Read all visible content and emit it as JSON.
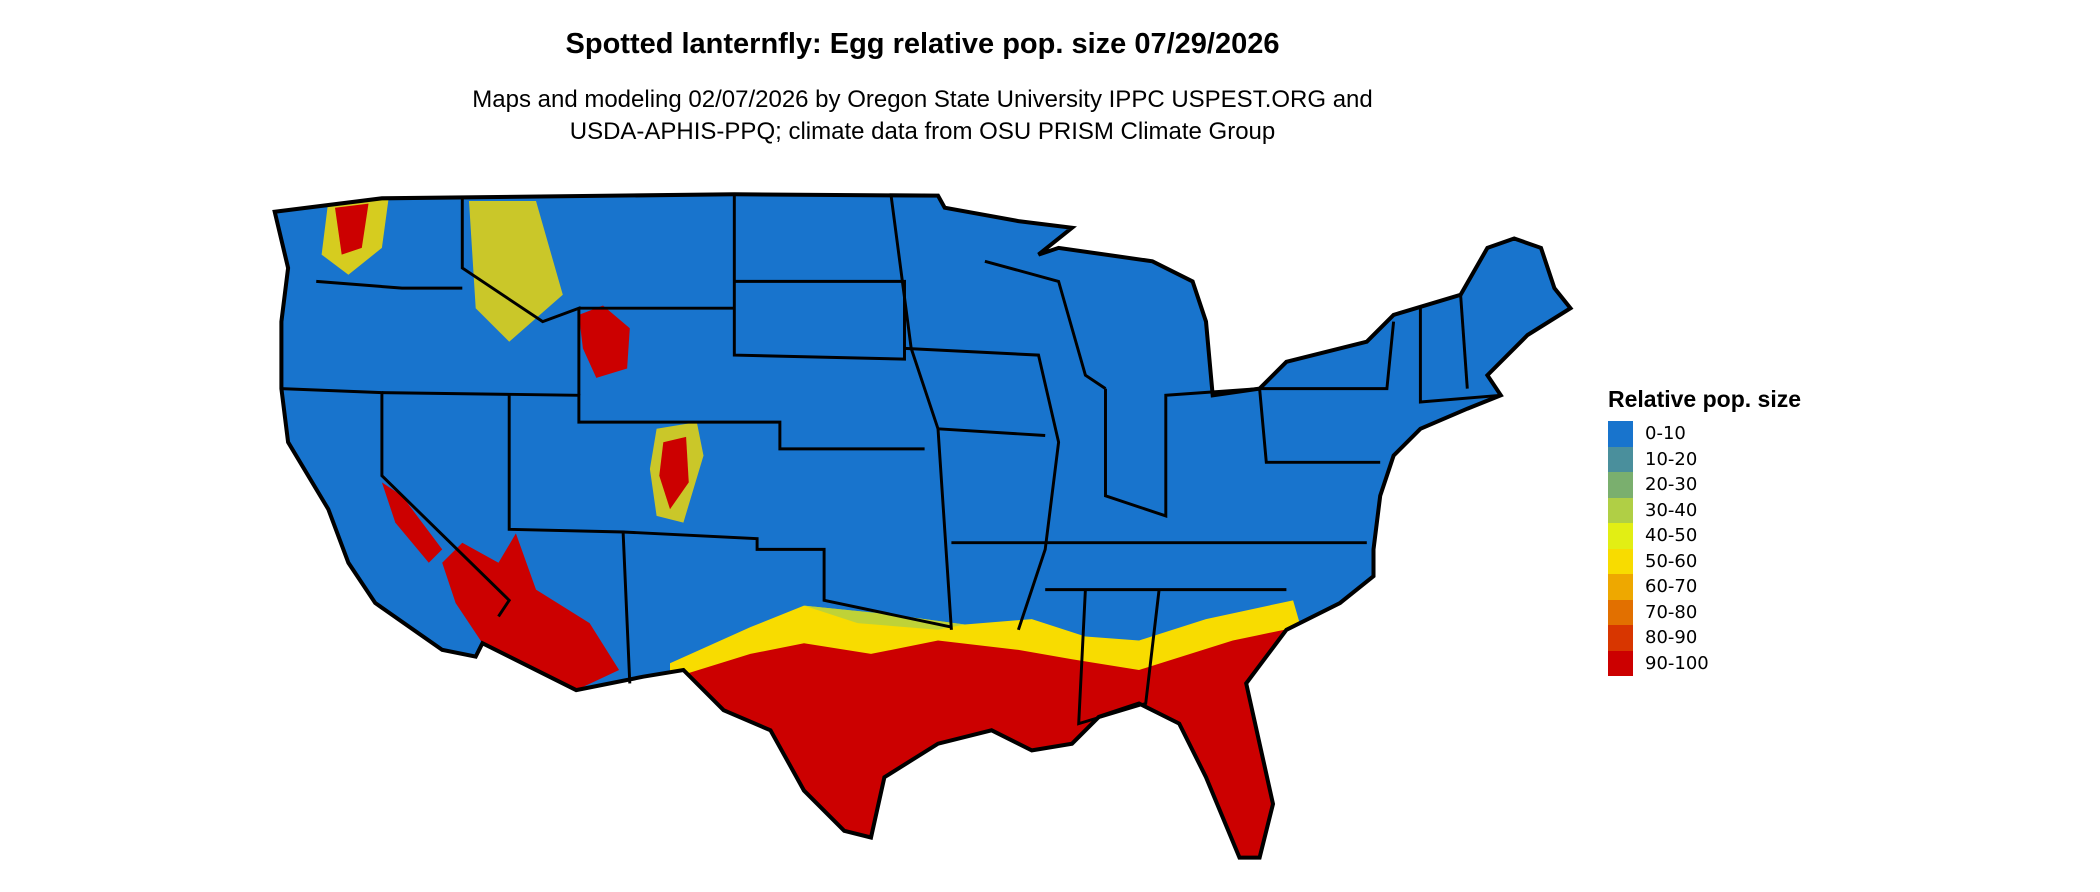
{
  "title": "Spotted lanternfly: Egg relative pop. size 07/29/2026",
  "subtitle_line1": "Maps and modeling 02/07/2026 by Oregon State University IPPC USPEST.ORG and",
  "subtitle_line2": "USDA-APHIS-PPQ; climate data from OSU PRISM Climate Group",
  "legend": {
    "title": "Relative pop. size",
    "items": [
      {
        "label": "0-10",
        "color": "#1874CD"
      },
      {
        "label": "10-20",
        "color": "#4A8F9C"
      },
      {
        "label": "20-30",
        "color": "#7AAF6E"
      },
      {
        "label": "30-40",
        "color": "#B0CF45"
      },
      {
        "label": "40-50",
        "color": "#E2EE14"
      },
      {
        "label": "50-60",
        "color": "#F8DC00"
      },
      {
        "label": "60-70",
        "color": "#EEA800"
      },
      {
        "label": "70-80",
        "color": "#E27000"
      },
      {
        "label": "80-90",
        "color": "#D83600"
      },
      {
        "label": "90-100",
        "color": "#CC0000"
      }
    ]
  }
}
